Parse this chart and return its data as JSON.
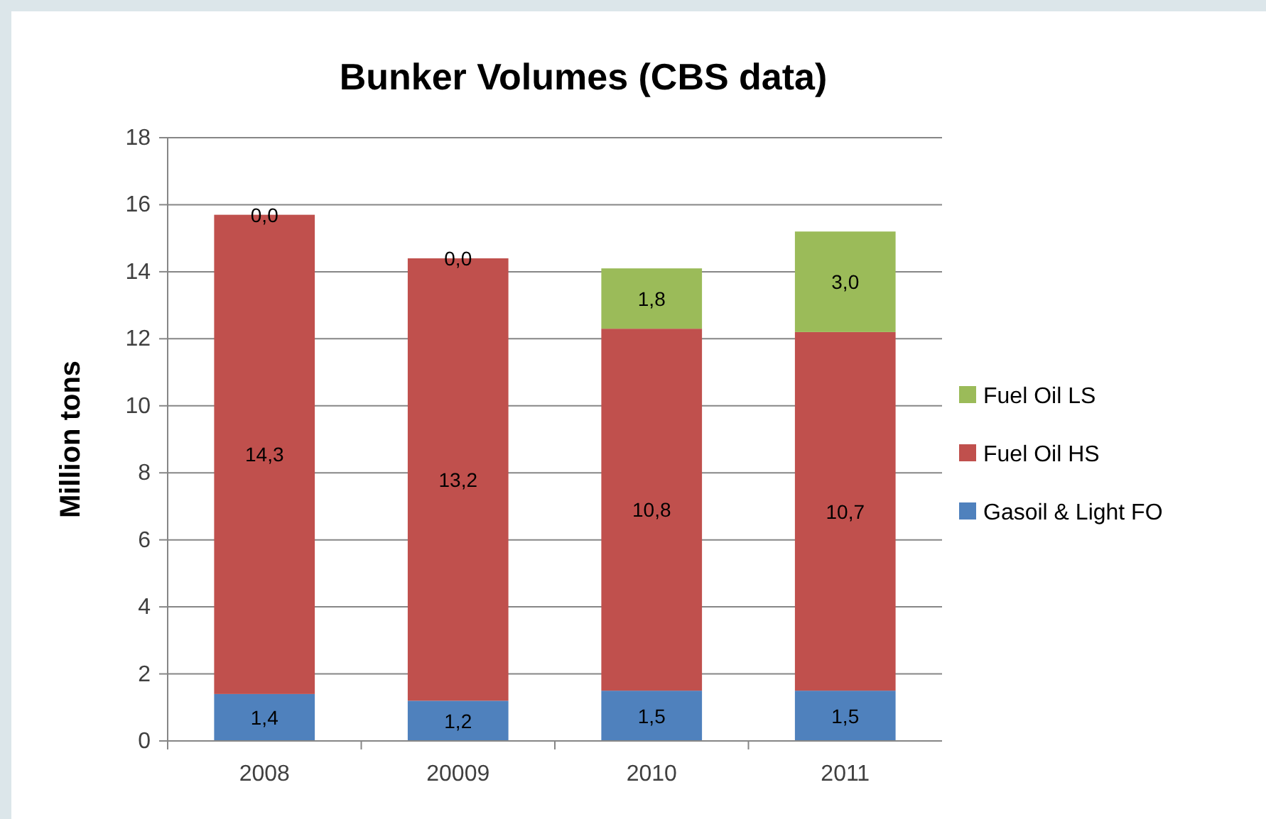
{
  "chart_data": {
    "type": "bar",
    "title": "Bunker Volumes (CBS data)",
    "ylabel": "Million tons",
    "stacked": true,
    "categories": [
      "2008",
      "20009",
      "2010",
      "2011"
    ],
    "series": [
      {
        "name": "Gasoil & Light FO",
        "color": "#4f81bd",
        "values": [
          1.4,
          1.2,
          1.5,
          1.5
        ],
        "value_labels": [
          "1,4",
          "1,2",
          "1,5",
          "1,5"
        ]
      },
      {
        "name": "Fuel Oil HS",
        "color": "#c0504d",
        "values": [
          14.3,
          13.2,
          10.8,
          10.7
        ],
        "value_labels": [
          "14,3",
          "13,2",
          "10,8",
          "10,7"
        ]
      },
      {
        "name": "Fuel Oil LS",
        "color": "#9bbb59",
        "values": [
          0.0,
          0.0,
          1.8,
          3.0
        ],
        "value_labels": [
          "0,0",
          "0,0",
          "1,8",
          "3,0"
        ]
      }
    ],
    "ylim": [
      0,
      18
    ],
    "yticks": [
      0,
      2,
      4,
      6,
      8,
      10,
      12,
      14,
      16,
      18
    ],
    "grid": "y",
    "legend": "right"
  }
}
